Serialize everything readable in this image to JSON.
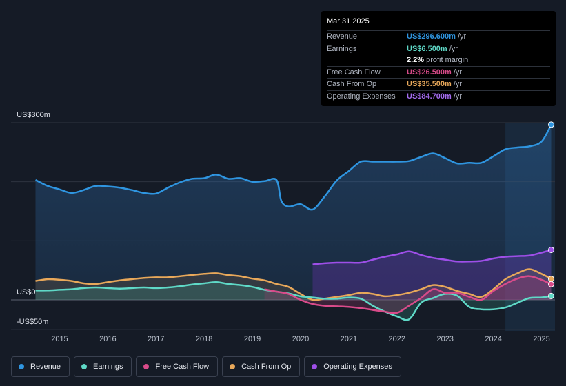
{
  "tooltip": {
    "date": "Mar 31 2025",
    "rows": [
      {
        "label": "Revenue",
        "value": "US$296.600m",
        "unit": "/yr",
        "color": "#2f95e0"
      },
      {
        "label": "Earnings",
        "value": "US$6.500m",
        "unit": "/yr",
        "color": "#5fd9c7"
      },
      {
        "label": "",
        "value": "2.2%",
        "unit": "profit margin",
        "color": "#ffffff"
      },
      {
        "label": "Free Cash Flow",
        "value": "US$26.500m",
        "unit": "/yr",
        "color": "#d94b8a"
      },
      {
        "label": "Cash From Op",
        "value": "US$35.500m",
        "unit": "/yr",
        "color": "#e8a85a"
      },
      {
        "label": "Operating Expenses",
        "value": "US$84.700m",
        "unit": "/yr",
        "color": "#9e4fe8"
      }
    ]
  },
  "legend": [
    {
      "label": "Revenue",
      "color": "#2f95e0"
    },
    {
      "label": "Earnings",
      "color": "#5fd9c7"
    },
    {
      "label": "Free Cash Flow",
      "color": "#d94b8a"
    },
    {
      "label": "Cash From Op",
      "color": "#e8a85a"
    },
    {
      "label": "Operating Expenses",
      "color": "#9e4fe8"
    }
  ],
  "chart_data": {
    "type": "area",
    "title": "",
    "y_labels": [
      "US$300m",
      "US$0",
      "-US$50m"
    ],
    "ylim": [
      -50,
      300
    ],
    "xlim": [
      2014.45,
      2025.25
    ],
    "x_ticks": [
      "2015",
      "2016",
      "2017",
      "2018",
      "2019",
      "2020",
      "2021",
      "2022",
      "2023",
      "2024",
      "2025"
    ],
    "forecast_start": 2024.25,
    "series": [
      {
        "name": "Revenue",
        "color": "#2f95e0",
        "points": [
          [
            2014.5,
            203
          ],
          [
            2014.75,
            193
          ],
          [
            2015.0,
            187
          ],
          [
            2015.25,
            181
          ],
          [
            2015.5,
            186
          ],
          [
            2015.75,
            193
          ],
          [
            2016.0,
            192
          ],
          [
            2016.25,
            190
          ],
          [
            2016.5,
            186
          ],
          [
            2016.75,
            181
          ],
          [
            2017.0,
            180
          ],
          [
            2017.25,
            190
          ],
          [
            2017.5,
            199
          ],
          [
            2017.75,
            205
          ],
          [
            2018.0,
            206
          ],
          [
            2018.25,
            212
          ],
          [
            2018.5,
            205
          ],
          [
            2018.75,
            206
          ],
          [
            2019.0,
            200
          ],
          [
            2019.25,
            201
          ],
          [
            2019.5,
            203
          ],
          [
            2019.6,
            168
          ],
          [
            2019.75,
            158
          ],
          [
            2020.0,
            162
          ],
          [
            2020.25,
            153
          ],
          [
            2020.5,
            175
          ],
          [
            2020.75,
            202
          ],
          [
            2021.0,
            218
          ],
          [
            2021.25,
            234
          ],
          [
            2021.5,
            234
          ],
          [
            2021.75,
            234
          ],
          [
            2022.0,
            234
          ],
          [
            2022.25,
            235
          ],
          [
            2022.5,
            242
          ],
          [
            2022.75,
            248
          ],
          [
            2023.0,
            240
          ],
          [
            2023.25,
            231
          ],
          [
            2023.5,
            232
          ],
          [
            2023.75,
            232
          ],
          [
            2024.0,
            243
          ],
          [
            2024.25,
            255
          ],
          [
            2024.5,
            258
          ],
          [
            2024.75,
            260
          ],
          [
            2025.0,
            268
          ],
          [
            2025.2,
            296.6
          ]
        ]
      },
      {
        "name": "Earnings",
        "color": "#5fd9c7",
        "points": [
          [
            2014.5,
            16
          ],
          [
            2014.75,
            16
          ],
          [
            2015.0,
            17
          ],
          [
            2015.25,
            18
          ],
          [
            2015.5,
            20
          ],
          [
            2015.75,
            21
          ],
          [
            2016.0,
            20
          ],
          [
            2016.25,
            19
          ],
          [
            2016.5,
            20
          ],
          [
            2016.75,
            21
          ],
          [
            2017.0,
            20
          ],
          [
            2017.25,
            21
          ],
          [
            2017.5,
            23
          ],
          [
            2017.75,
            26
          ],
          [
            2018.0,
            28
          ],
          [
            2018.25,
            30
          ],
          [
            2018.5,
            27
          ],
          [
            2018.75,
            25
          ],
          [
            2019.0,
            22
          ],
          [
            2019.25,
            17
          ],
          [
            2019.5,
            14
          ],
          [
            2019.75,
            11
          ],
          [
            2020.0,
            6
          ],
          [
            2020.25,
            4
          ],
          [
            2020.5,
            2
          ],
          [
            2020.75,
            2
          ],
          [
            2021.0,
            4
          ],
          [
            2021.25,
            2
          ],
          [
            2021.5,
            -10
          ],
          [
            2021.75,
            -20
          ],
          [
            2022.0,
            -28
          ],
          [
            2022.25,
            -33
          ],
          [
            2022.5,
            -5
          ],
          [
            2022.75,
            3
          ],
          [
            2023.0,
            10
          ],
          [
            2023.25,
            7
          ],
          [
            2023.5,
            -12
          ],
          [
            2023.75,
            -16
          ],
          [
            2024.0,
            -16
          ],
          [
            2024.25,
            -13
          ],
          [
            2024.5,
            -5
          ],
          [
            2024.75,
            3
          ],
          [
            2025.0,
            4
          ],
          [
            2025.2,
            6.5
          ]
        ]
      },
      {
        "name": "Free Cash Flow",
        "color": "#d94b8a",
        "points": [
          [
            2019.25,
            18
          ],
          [
            2019.5,
            14
          ],
          [
            2019.75,
            10
          ],
          [
            2020.0,
            0
          ],
          [
            2020.25,
            -7
          ],
          [
            2020.5,
            -10
          ],
          [
            2020.75,
            -11
          ],
          [
            2021.0,
            -12
          ],
          [
            2021.25,
            -14
          ],
          [
            2021.5,
            -17
          ],
          [
            2021.75,
            -20
          ],
          [
            2022.0,
            -22
          ],
          [
            2022.25,
            -10
          ],
          [
            2022.5,
            3
          ],
          [
            2022.75,
            18
          ],
          [
            2023.0,
            12
          ],
          [
            2023.25,
            12
          ],
          [
            2023.5,
            5
          ],
          [
            2023.75,
            0
          ],
          [
            2024.0,
            15
          ],
          [
            2024.25,
            27
          ],
          [
            2024.5,
            36
          ],
          [
            2024.75,
            40
          ],
          [
            2025.0,
            34
          ],
          [
            2025.2,
            26.5
          ]
        ]
      },
      {
        "name": "Cash From Op",
        "color": "#e8a85a",
        "points": [
          [
            2014.5,
            32
          ],
          [
            2014.75,
            35
          ],
          [
            2015.0,
            34
          ],
          [
            2015.25,
            32
          ],
          [
            2015.5,
            28
          ],
          [
            2015.75,
            27
          ],
          [
            2016.0,
            30
          ],
          [
            2016.25,
            33
          ],
          [
            2016.5,
            35
          ],
          [
            2016.75,
            37
          ],
          [
            2017.0,
            38
          ],
          [
            2017.25,
            38
          ],
          [
            2017.5,
            40
          ],
          [
            2017.75,
            42
          ],
          [
            2018.0,
            44
          ],
          [
            2018.25,
            45
          ],
          [
            2018.5,
            42
          ],
          [
            2018.75,
            40
          ],
          [
            2019.0,
            36
          ],
          [
            2019.25,
            33
          ],
          [
            2019.5,
            27
          ],
          [
            2019.75,
            22
          ],
          [
            2020.0,
            10
          ],
          [
            2020.25,
            0
          ],
          [
            2020.5,
            2
          ],
          [
            2020.75,
            5
          ],
          [
            2021.0,
            8
          ],
          [
            2021.25,
            12
          ],
          [
            2021.5,
            10
          ],
          [
            2021.75,
            6
          ],
          [
            2022.0,
            8
          ],
          [
            2022.25,
            12
          ],
          [
            2022.5,
            18
          ],
          [
            2022.75,
            25
          ],
          [
            2023.0,
            22
          ],
          [
            2023.25,
            15
          ],
          [
            2023.5,
            10
          ],
          [
            2023.75,
            5
          ],
          [
            2024.0,
            18
          ],
          [
            2024.25,
            35
          ],
          [
            2024.5,
            45
          ],
          [
            2024.75,
            52
          ],
          [
            2025.0,
            44
          ],
          [
            2025.2,
            35.5
          ]
        ]
      },
      {
        "name": "Operating Expenses",
        "color": "#9e4fe8",
        "points": [
          [
            2020.25,
            60
          ],
          [
            2020.5,
            62
          ],
          [
            2020.75,
            63
          ],
          [
            2021.0,
            63
          ],
          [
            2021.25,
            63
          ],
          [
            2021.5,
            68
          ],
          [
            2021.75,
            73
          ],
          [
            2022.0,
            77
          ],
          [
            2022.25,
            82
          ],
          [
            2022.5,
            76
          ],
          [
            2022.75,
            71
          ],
          [
            2023.0,
            68
          ],
          [
            2023.25,
            65
          ],
          [
            2023.5,
            65
          ],
          [
            2023.75,
            66
          ],
          [
            2024.0,
            70
          ],
          [
            2024.25,
            73
          ],
          [
            2024.5,
            74
          ],
          [
            2024.75,
            75
          ],
          [
            2025.0,
            80
          ],
          [
            2025.2,
            84.7
          ]
        ]
      }
    ]
  }
}
